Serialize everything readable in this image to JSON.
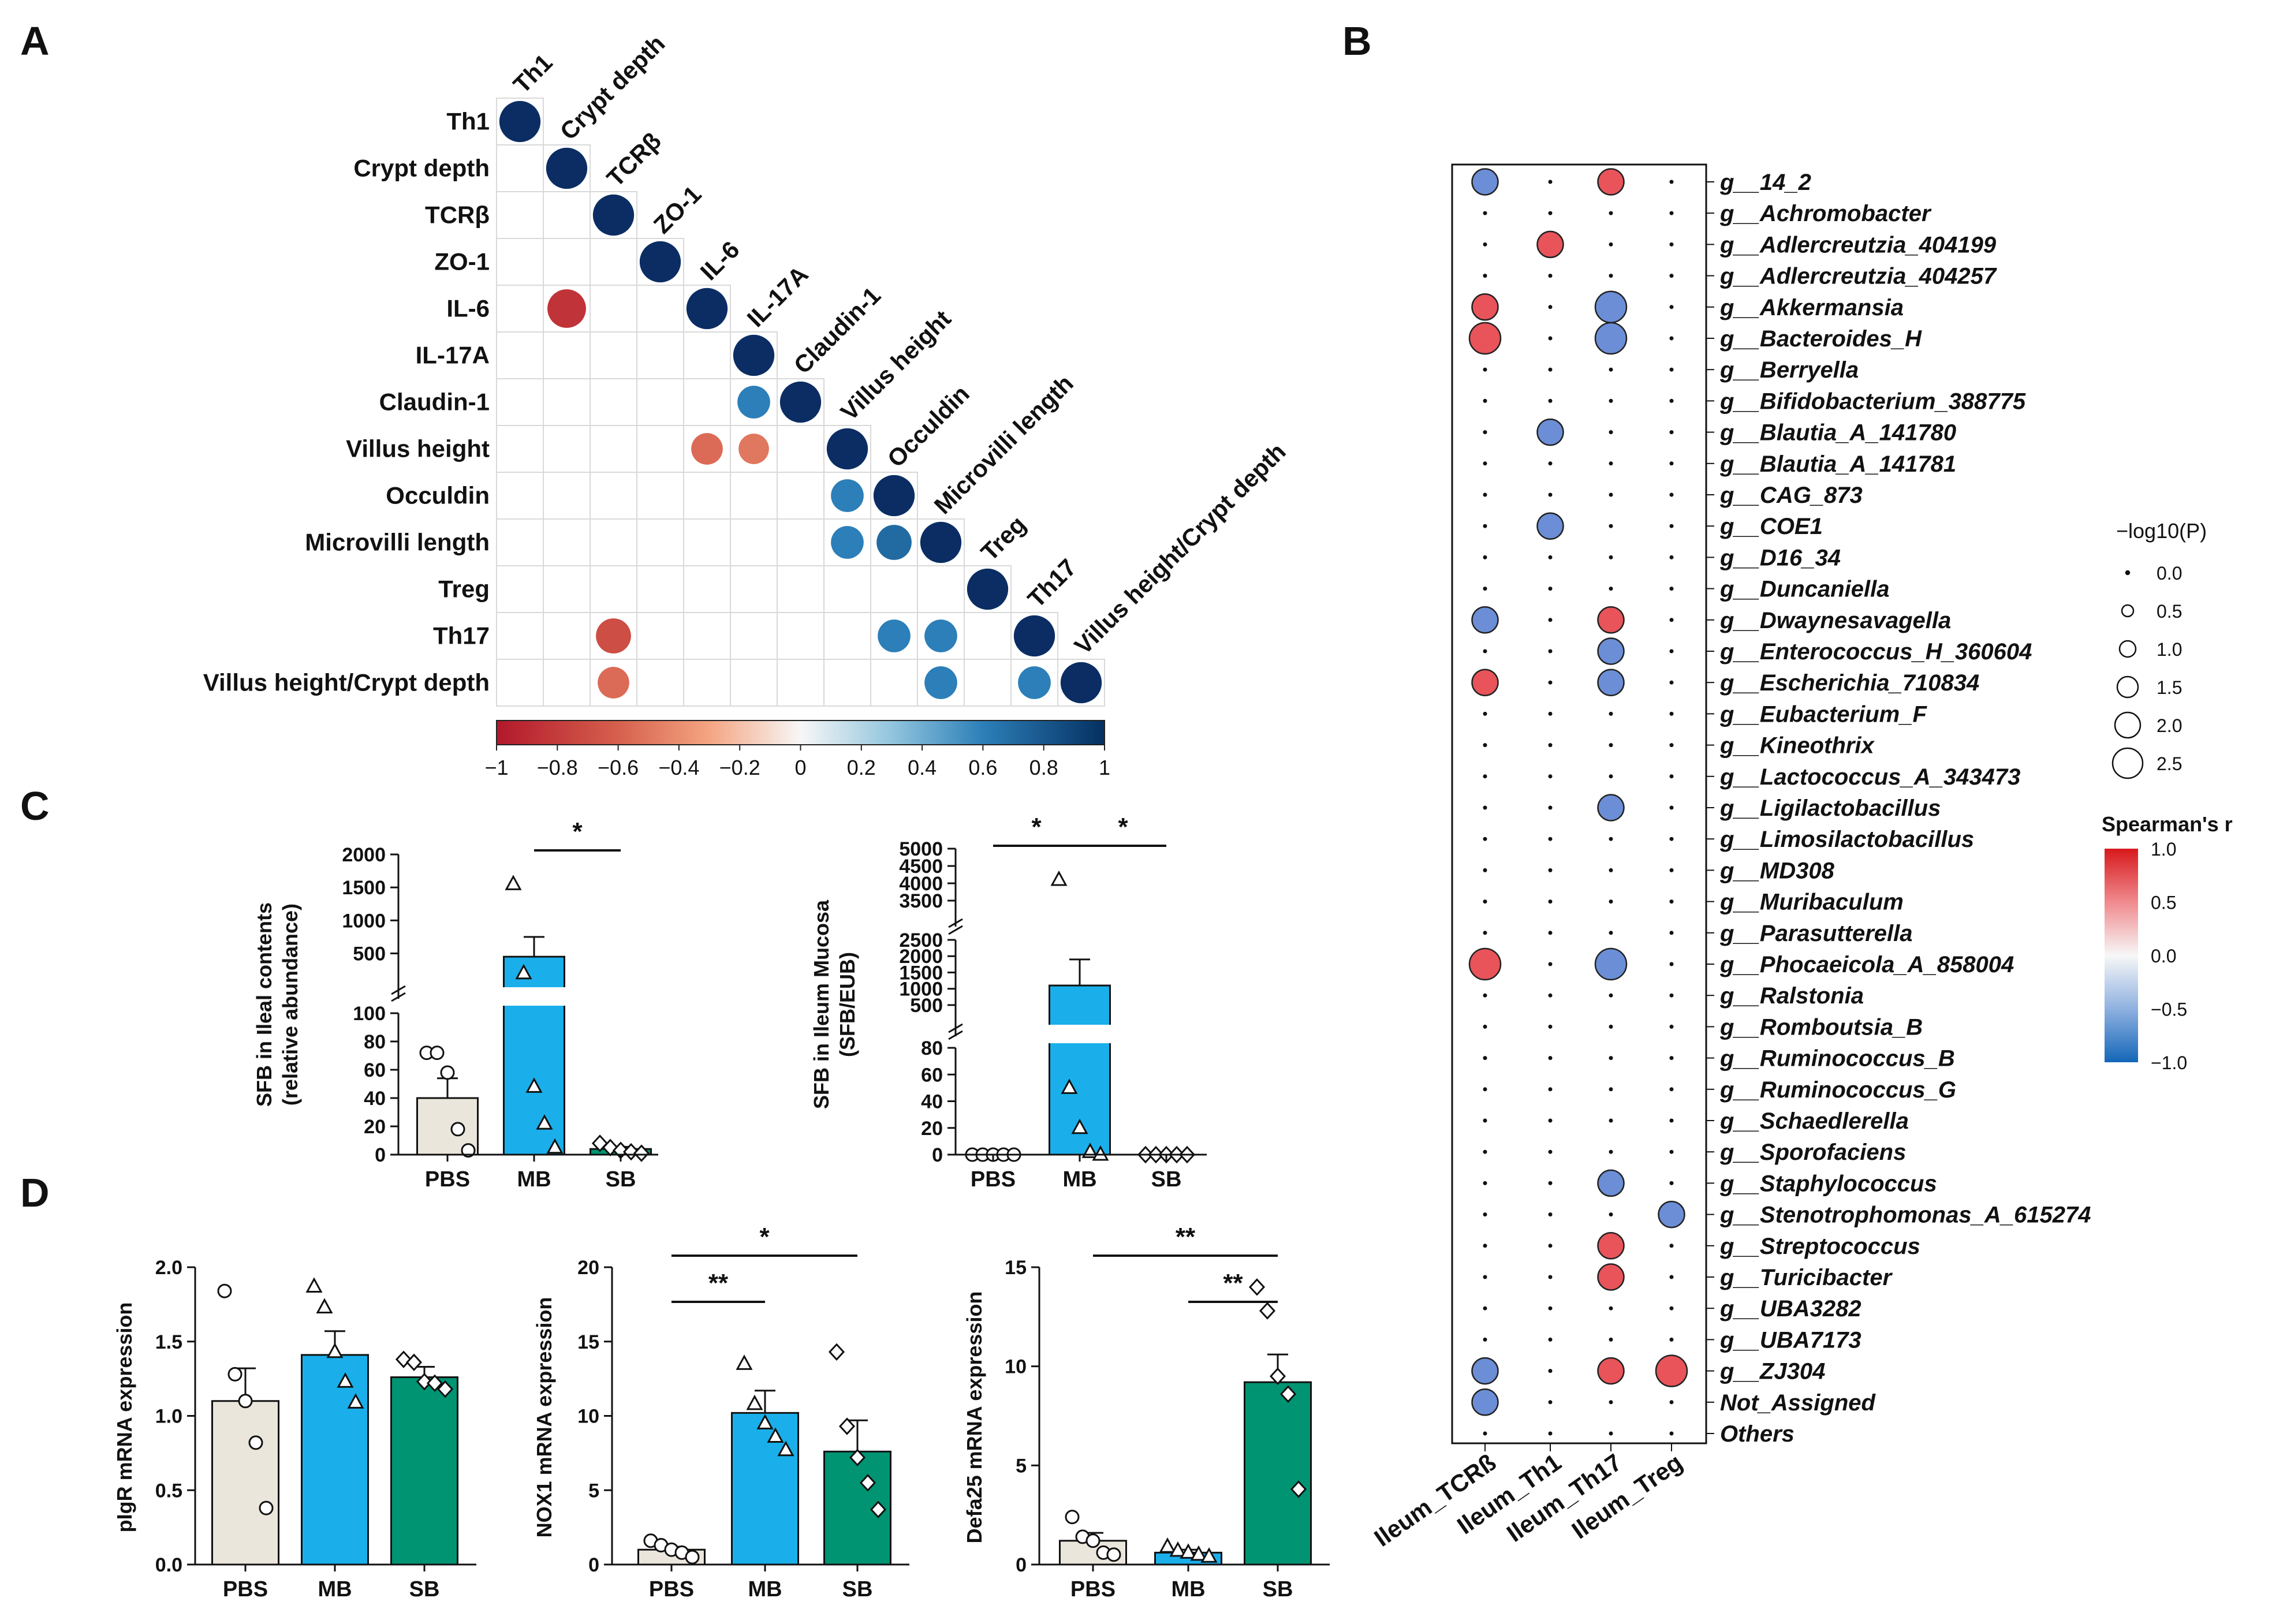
{
  "panel_labels": [
    "A",
    "B",
    "C",
    "D"
  ],
  "chart_data": [
    {
      "panel": "A",
      "type": "heatmap",
      "variables": [
        "Th1",
        "Crypt depth",
        "TCRβ",
        "ZO-1",
        "IL-6",
        "IL-17A",
        "Claudin-1",
        "Villus height",
        "Occuldin",
        "Microvilli length",
        "Treg",
        "Th17",
        "Villus height/Crypt depth"
      ],
      "cells": [
        {
          "row": 4,
          "col": 1,
          "value": -0.85
        },
        {
          "row": 6,
          "col": 5,
          "value": 0.6
        },
        {
          "row": 7,
          "col": 4,
          "value": -0.55
        },
        {
          "row": 7,
          "col": 5,
          "value": -0.5
        },
        {
          "row": 8,
          "col": 7,
          "value": 0.6
        },
        {
          "row": 9,
          "col": 7,
          "value": 0.6
        },
        {
          "row": 9,
          "col": 8,
          "value": 0.7
        },
        {
          "row": 11,
          "col": 2,
          "value": -0.7
        },
        {
          "row": 11,
          "col": 8,
          "value": 0.6
        },
        {
          "row": 11,
          "col": 9,
          "value": 0.6
        },
        {
          "row": 12,
          "col": 2,
          "value": -0.55
        },
        {
          "row": 12,
          "col": 9,
          "value": 0.6
        },
        {
          "row": 12,
          "col": 11,
          "value": 0.6
        }
      ],
      "colorbar": {
        "min": -1,
        "max": 1,
        "ticks": [
          "−1",
          "−0.8",
          "−0.6",
          "−0.4",
          "−0.2",
          "0",
          "0.2",
          "0.4",
          "0.6",
          "0.8",
          "1"
        ]
      },
      "colors": {
        "neg": "#b2182b",
        "pos": "#053061",
        "mid": "#ffffff"
      }
    },
    {
      "panel": "B",
      "type": "scatter",
      "x_categories": [
        "Ileum_TCRß",
        "Ileum_Th1",
        "Ileum_Th17",
        "Ileum_Treg"
      ],
      "y_categories": [
        "g__14_2",
        "g__Achromobacter",
        "g__Adlercreutzia_404199",
        "g__Adlercreutzia_404257",
        "g__Akkermansia",
        "g__Bacteroides_H",
        "g__Berryella",
        "g__Bifidobacterium_388775",
        "g__Blautia_A_141780",
        "g__Blautia_A_141781",
        "g__CAG_873",
        "g__COE1",
        "g__D16_34",
        "g__Duncaniella",
        "g__Dwaynesavagella",
        "g__Enterococcus_H_360604",
        "g__Escherichia_710834",
        "g__Eubacterium_F",
        "g__Kineothrix",
        "g__Lactococcus_A_343473",
        "g__Ligilactobacillus",
        "g__Limosilactobacillus",
        "g__MD308",
        "g__Muribaculum",
        "g__Parasutterella",
        "g__Phocaeicola_A_858004",
        "g__Ralstonia",
        "g__Romboutsia_B",
        "g__Ruminococcus_B",
        "g__Ruminococcus_G",
        "g__Schaedlerella",
        "g__Sporofaciens",
        "g__Staphylococcus",
        "g__Stenotrophomonas_A_615274",
        "g__Streptococcus",
        "g__Turicibacter",
        "g__UBA3282",
        "g__UBA7173",
        "g__ZJ304",
        "Not_Assigned",
        "Others"
      ],
      "points": [
        {
          "y": 0,
          "x": 0,
          "r": -0.5,
          "logp": 1.5
        },
        {
          "y": 0,
          "x": 2,
          "r": 0.5,
          "logp": 1.5
        },
        {
          "y": 2,
          "x": 1,
          "r": 0.5,
          "logp": 1.5
        },
        {
          "y": 4,
          "x": 0,
          "r": 0.6,
          "logp": 1.5
        },
        {
          "y": 4,
          "x": 2,
          "r": -0.6,
          "logp": 2.0
        },
        {
          "y": 5,
          "x": 0,
          "r": 0.6,
          "logp": 2.0
        },
        {
          "y": 5,
          "x": 2,
          "r": -0.6,
          "logp": 2.0
        },
        {
          "y": 8,
          "x": 1,
          "r": -0.5,
          "logp": 1.5
        },
        {
          "y": 11,
          "x": 1,
          "r": -0.5,
          "logp": 1.5
        },
        {
          "y": 14,
          "x": 0,
          "r": -0.5,
          "logp": 1.5
        },
        {
          "y": 14,
          "x": 2,
          "r": 0.5,
          "logp": 1.5
        },
        {
          "y": 15,
          "x": 2,
          "r": -0.5,
          "logp": 1.5
        },
        {
          "y": 16,
          "x": 0,
          "r": 0.6,
          "logp": 1.5
        },
        {
          "y": 16,
          "x": 2,
          "r": -0.6,
          "logp": 1.5
        },
        {
          "y": 20,
          "x": 2,
          "r": -0.5,
          "logp": 1.5
        },
        {
          "y": 25,
          "x": 0,
          "r": 0.65,
          "logp": 2.0
        },
        {
          "y": 25,
          "x": 2,
          "r": -0.65,
          "logp": 2.0
        },
        {
          "y": 32,
          "x": 2,
          "r": -0.5,
          "logp": 1.5
        },
        {
          "y": 33,
          "x": 3,
          "r": -0.5,
          "logp": 1.5
        },
        {
          "y": 34,
          "x": 2,
          "r": 0.5,
          "logp": 1.5
        },
        {
          "y": 35,
          "x": 2,
          "r": 0.5,
          "logp": 1.5
        },
        {
          "y": 38,
          "x": 0,
          "r": -0.5,
          "logp": 1.5
        },
        {
          "y": 38,
          "x": 2,
          "r": 0.5,
          "logp": 1.5
        },
        {
          "y": 38,
          "x": 3,
          "r": 0.7,
          "logp": 2.0
        },
        {
          "y": 39,
          "x": 0,
          "r": -0.5,
          "logp": 1.5
        }
      ],
      "size_legend": {
        "title": "−log10(P)",
        "values": [
          "0.0",
          "0.5",
          "1.0",
          "1.5",
          "2.0",
          "2.5"
        ]
      },
      "color_legend": {
        "title": "Spearman's r",
        "ticks": [
          "1.0",
          "0.5",
          "0.0",
          "−0.5",
          "−1.0"
        ]
      },
      "colors": {
        "pos": "#e8545a",
        "neg": "#6b8ed6"
      }
    },
    {
      "panel": "C1",
      "type": "bar",
      "categories": [
        "PBS",
        "MB",
        "SB"
      ],
      "ylabel_lines": [
        "SFB in Ileal contents",
        "(relative abundance)"
      ],
      "values": [
        40,
        450,
        4
      ],
      "sem": [
        14,
        300,
        1.5
      ],
      "points": [
        [
          72,
          72,
          58,
          18,
          3
        ],
        [
          1550,
          200,
          48,
          22,
          5
        ],
        [
          8,
          5,
          3,
          2,
          1
        ]
      ],
      "lower_axis": {
        "ylim": [
          0,
          100
        ],
        "ticks": [
          "0",
          "20",
          "40",
          "60",
          "80",
          "100"
        ]
      },
      "upper_axis": {
        "ylim": [
          250,
          2000
        ],
        "ticks": [
          "500",
          "1000",
          "1500",
          "2000"
        ]
      },
      "significance": [
        {
          "from": 1,
          "to": 2,
          "label": "*"
        }
      ],
      "colors": [
        "#ebe6dc",
        "#1aafea",
        "#009473"
      ]
    },
    {
      "panel": "C2",
      "type": "bar",
      "categories": [
        "PBS",
        "MB",
        "SB"
      ],
      "ylabel_lines": [
        "SFB in Ileum Mucosa",
        "(SFB/EUB)"
      ],
      "values": [
        0,
        1100,
        0
      ],
      "sem": [
        0,
        800,
        0
      ],
      "points": [
        [
          0,
          0,
          0,
          0,
          0
        ],
        [
          4100,
          50,
          20,
          2,
          0
        ],
        [
          0,
          0,
          0,
          0,
          0
        ]
      ],
      "lower_axis": {
        "ylim": [
          0,
          80
        ],
        "ticks": [
          "0",
          "20",
          "40",
          "60",
          "80"
        ]
      },
      "middle_axis": {
        "ylim": [
          250,
          2500
        ],
        "ticks": [
          "500",
          "1000",
          "1500",
          "2000",
          "2500"
        ]
      },
      "upper_axis": {
        "ylim": [
          3000,
          5000
        ],
        "ticks": [
          "3500",
          "4000",
          "4500",
          "5000"
        ]
      },
      "significance": [
        {
          "from": 0,
          "to": 1,
          "label": "*"
        },
        {
          "from": 1,
          "to": 2,
          "label": "*"
        }
      ],
      "colors": [
        "#ebe6dc",
        "#1aafea",
        "#009473"
      ]
    },
    {
      "panel": "D1",
      "type": "bar",
      "categories": [
        "PBS",
        "MB",
        "SB"
      ],
      "ylabel": "pIgR mRNA expression",
      "ylim": [
        0,
        2.0
      ],
      "ticks": [
        "0.0",
        "0.5",
        "1.0",
        "1.5",
        "2.0"
      ],
      "values": [
        1.1,
        1.41,
        1.26
      ],
      "sem": [
        0.22,
        0.16,
        0.07
      ],
      "points": [
        [
          1.84,
          1.28,
          1.1,
          0.82,
          0.38
        ],
        [
          1.87,
          1.73,
          1.43,
          1.23,
          1.09
        ],
        [
          1.38,
          1.36,
          1.23,
          1.22,
          1.18
        ]
      ],
      "significance": [],
      "colors": [
        "#ebe6dc",
        "#1aafea",
        "#009473"
      ]
    },
    {
      "panel": "D2",
      "type": "bar",
      "categories": [
        "PBS",
        "MB",
        "SB"
      ],
      "ylabel": "NOX1 mRNA expression",
      "ylim": [
        0,
        20
      ],
      "ticks": [
        "0",
        "5",
        "10",
        "15",
        "20"
      ],
      "values": [
        1.0,
        10.2,
        7.6
      ],
      "sem": [
        0.2,
        1.5,
        2.1
      ],
      "points": [
        [
          1.6,
          1.3,
          1.0,
          0.8,
          0.5
        ],
        [
          13.5,
          10.8,
          9.5,
          8.6,
          7.7
        ],
        [
          14.3,
          9.3,
          7.2,
          5.5,
          3.7
        ]
      ],
      "significance": [
        {
          "from": 0,
          "to": 1,
          "label": "**"
        },
        {
          "from": 0,
          "to": 2,
          "label": "*"
        }
      ],
      "colors": [
        "#ebe6dc",
        "#1aafea",
        "#009473"
      ]
    },
    {
      "panel": "D3",
      "type": "bar",
      "categories": [
        "PBS",
        "MB",
        "SB"
      ],
      "ylabel": "Defa25 mRNA expression",
      "ylim": [
        0,
        15
      ],
      "ticks": [
        "0",
        "5",
        "10",
        "15"
      ],
      "values": [
        1.2,
        0.6,
        9.2
      ],
      "sem": [
        0.4,
        0.15,
        1.4
      ],
      "points": [
        [
          2.4,
          1.4,
          1.2,
          0.6,
          0.5
        ],
        [
          0.9,
          0.7,
          0.6,
          0.5,
          0.4
        ],
        [
          14.0,
          12.8,
          9.5,
          8.6,
          3.8
        ]
      ],
      "significance": [
        {
          "from": 0,
          "to": 2,
          "label": "**"
        },
        {
          "from": 1,
          "to": 2,
          "label": "**"
        }
      ],
      "colors": [
        "#ebe6dc",
        "#1aafea",
        "#009473"
      ]
    }
  ]
}
